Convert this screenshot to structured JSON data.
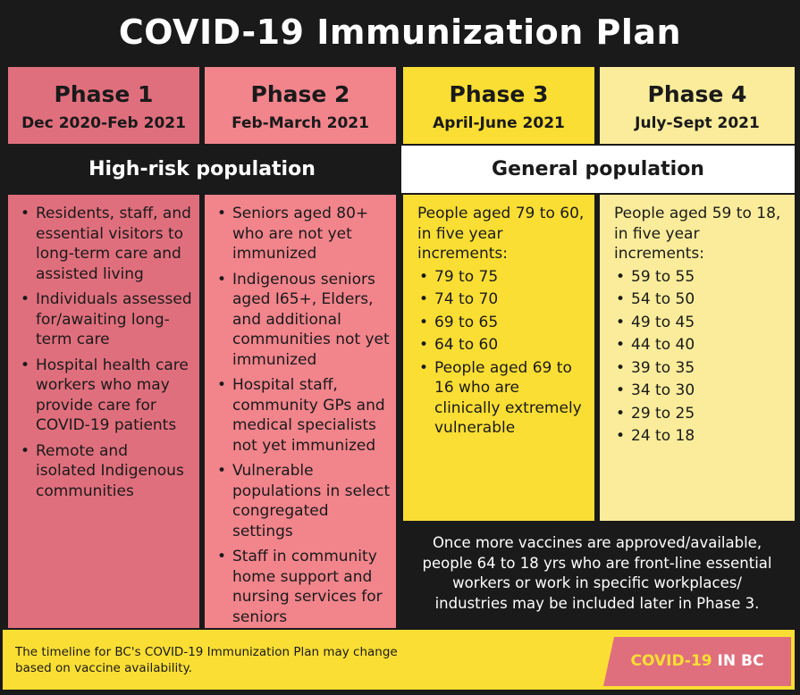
{
  "title": "COVID-19 Immunization Plan",
  "phases": [
    {
      "name": "Phase 1",
      "dates": "Dec 2020-Feb 2021"
    },
    {
      "name": "Phase 2",
      "dates": "Feb-March 2021"
    },
    {
      "name": "Phase 3",
      "dates": "April-June 2021"
    },
    {
      "name": "Phase 4",
      "dates": "July-Sept 2021"
    }
  ],
  "population_bands": {
    "high_risk": "High-risk population",
    "general": "General population"
  },
  "phase1_items": [
    "Residents, staff, and essential visitors to long-term care and assisted living",
    "Individuals assessed for/awaiting long-term care",
    "Hospital health care workers who may provide care for COVID-19 patients",
    "Remote and isolated Indigenous communities"
  ],
  "phase2_items": [
    "Seniors aged 80+ who are not yet immunized",
    "Indigenous seniors aged I65+, Elders, and additional communities not yet immunized",
    "Hospital staff, community GPs and medical specialists not yet immunized",
    "Vulnerable populations in select congregated settings",
    "Staff in community home support and nursing services for seniors"
  ],
  "phase3": {
    "intro": "People aged 79 to 60, in five year increments:",
    "ranges": [
      "79 to 75",
      "74 to 70",
      "69 to 65",
      "64 to 60"
    ],
    "extra": "People aged 69 to 16 who are clinically extremely vulnerable"
  },
  "phase4": {
    "intro": "People aged 59 to 18, in five year increments:",
    "ranges": [
      "59 to 55",
      "54 to 50",
      "49 to 45",
      "44 to 40",
      "39 to 35",
      "34 to 30",
      "29 to 25",
      "24 to 18"
    ]
  },
  "note": "Once more vaccines are approved/available, people 64 to 18 yrs who are front-line essential workers or work in specific workplaces/ industries may be included later in Phase 3.",
  "footer": {
    "disclaimer": "The timeline for BC's COVID-19 Immunization Plan may change based on vaccine availability.",
    "badge_part1": "COVID-19",
    "badge_part2": "IN BC"
  },
  "colors": {
    "phase1": "#e06f7d",
    "phase2": "#f2848c",
    "phase3": "#fbde33",
    "phase4": "#faec9a",
    "dark": "#1a1a1a"
  }
}
